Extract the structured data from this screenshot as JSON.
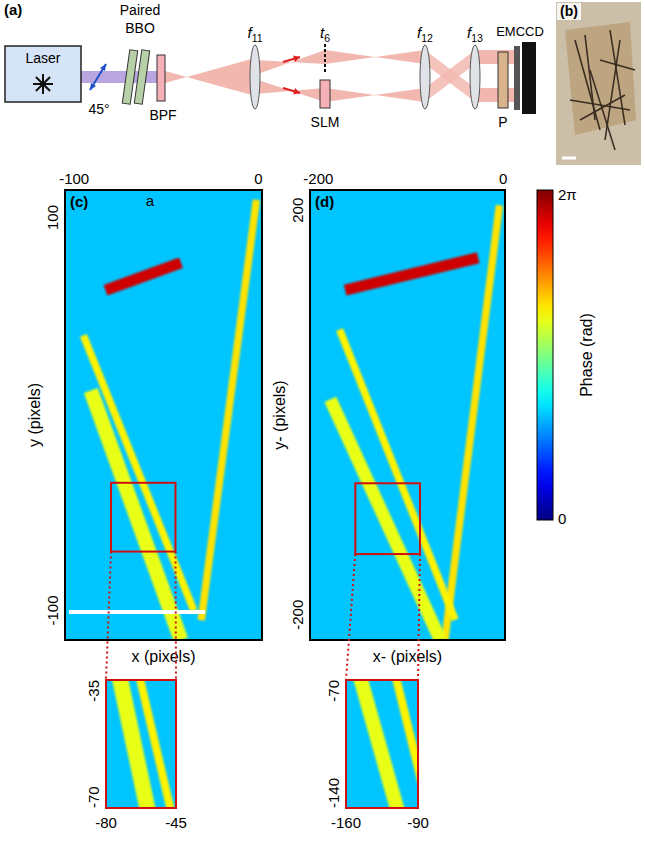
{
  "setup": {
    "label": "(a)",
    "source": "Laser",
    "polarization": "45°",
    "crystal": "Paired BBO",
    "filter": "BPF",
    "lenses": [
      {
        "text": "f",
        "sub": "11"
      },
      {
        "text": "f",
        "sub": "12"
      },
      {
        "text": "f",
        "sub": "13"
      }
    ],
    "plane": {
      "text": "t",
      "sub": "6"
    },
    "modulator": "SLM",
    "polarizer": "P",
    "camera": "EMCCD"
  },
  "photo": {
    "label": "(b)"
  },
  "colorbar": {
    "label": "Phase (rad)",
    "range": [
      0,
      6.2832
    ],
    "ticks": [
      {
        "value": 0,
        "label": "0"
      },
      {
        "value": 6.2832,
        "label": "2π"
      }
    ]
  },
  "chart_data": [
    {
      "type": "heatmap",
      "label": "(c)",
      "annotation": "a",
      "xlabel": "x (pixels)",
      "ylabel": "y (pixels)",
      "xlim": [
        -105,
        2
      ],
      "ylim": [
        -115,
        114
      ],
      "xticks": [
        -100,
        0
      ],
      "yticks": [
        -100,
        100
      ],
      "background_phase": 2.0,
      "fibers": [
        {
          "points": [
            [
              -83,
              63
            ],
            [
              -42,
              77
            ]
          ],
          "width": 6,
          "phase": 5.8
        },
        {
          "points": [
            [
              -1,
              109
            ],
            [
              -31,
              -105
            ]
          ],
          "width": 4,
          "phase": 4.1
        },
        {
          "points": [
            [
              -91,
              12
            ],
            [
              -42,
              -115
            ]
          ],
          "width": 8,
          "phase": 3.8
        },
        {
          "points": [
            [
              -95,
              40
            ],
            [
              -35,
              -100
            ]
          ],
          "width": 4,
          "phase": 4.0
        }
      ],
      "inset": {
        "xlim": [
          -80,
          -45
        ],
        "ylim": [
          -70,
          -35
        ],
        "xticks": [
          -80,
          -45
        ],
        "yticks": [
          -70,
          -35
        ]
      }
    },
    {
      "type": "heatmap",
      "label": "(d)",
      "xlabel": "x- (pixels)",
      "ylabel": "y- (pixels)",
      "xlim": [
        -209,
        2
      ],
      "ylim": [
        -225,
        220
      ],
      "xticks": [
        -200,
        0
      ],
      "yticks": [
        -200,
        200
      ],
      "background_phase": 2.0,
      "fibers": [
        {
          "points": [
            [
              -171,
              121
            ],
            [
              -27,
              153
            ]
          ],
          "width": 12,
          "phase": 5.8
        },
        {
          "points": [
            [
              -4,
              205
            ],
            [
              -63,
              -225
            ]
          ],
          "width": 8,
          "phase": 4.1
        },
        {
          "points": [
            [
              -187,
              13
            ],
            [
              -68,
              -225
            ]
          ],
          "width": 14,
          "phase": 3.8
        },
        {
          "points": [
            [
              -177,
              82
            ],
            [
              -52,
              -205
            ]
          ],
          "width": 8,
          "phase": 4.0
        }
      ],
      "inset": {
        "xlim": [
          -160,
          -90
        ],
        "ylim": [
          -140,
          -70
        ],
        "xticks": [
          -160,
          -90
        ],
        "yticks": [
          -140,
          -70
        ]
      }
    }
  ]
}
